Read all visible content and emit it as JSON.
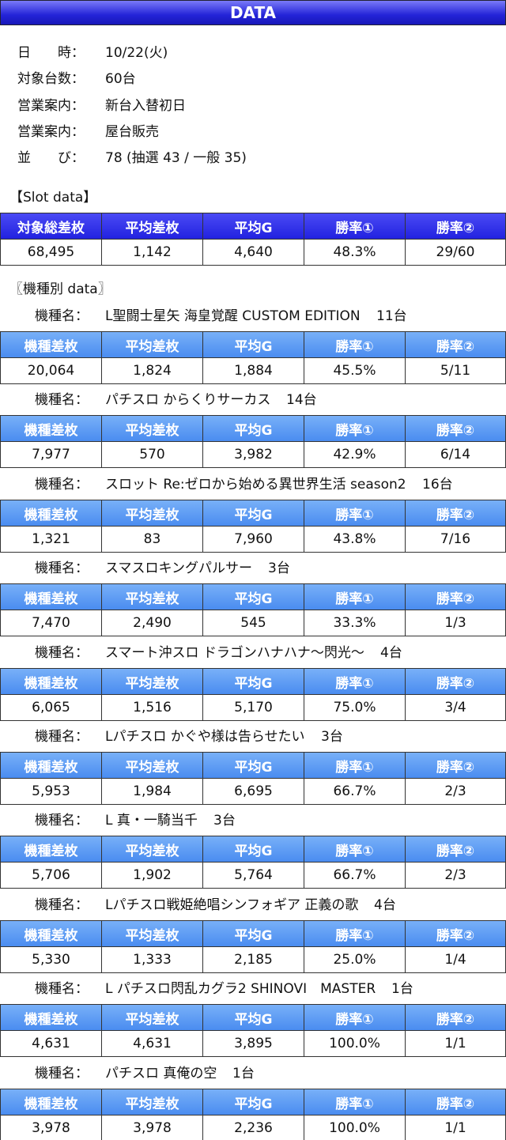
{
  "header": {
    "title": "DATA"
  },
  "info": [
    {
      "label": "日　　時：",
      "value": "10/22(火)"
    },
    {
      "label": "対象台数：",
      "value": "60台"
    },
    {
      "label": "営業案内：",
      "value": "新台入替初日"
    },
    {
      "label": "営業案内：",
      "value": "屋台販売"
    },
    {
      "label": "並　　び：",
      "value": "78 (抽選 43 / 一般 35)"
    }
  ],
  "slot": {
    "title": "【Slot data】",
    "headers": [
      "対象総差枚",
      "平均差枚",
      "平均G",
      "勝率①",
      "勝率②"
    ],
    "values": [
      "68,495",
      "1,142",
      "4,640",
      "48.3%",
      "29/60"
    ]
  },
  "machines_title": "〖機種別 data〗",
  "machine_headers": [
    "機種差枚",
    "平均差枚",
    "平均G",
    "勝率①",
    "勝率②"
  ],
  "machines": [
    {
      "label": "機種名：",
      "name": "L聖闘士星矢 海皇覚醒 CUSTOM EDITION",
      "count": "11台",
      "values": [
        "20,064",
        "1,824",
        "1,884",
        "45.5%",
        "5/11"
      ]
    },
    {
      "label": "機種名：",
      "name": "パチスロ からくりサーカス",
      "count": "14台",
      "values": [
        "7,977",
        "570",
        "3,982",
        "42.9%",
        "6/14"
      ]
    },
    {
      "label": "機種名：",
      "name": "スロット Re:ゼロから始める異世界生活 season2",
      "count": "16台",
      "values": [
        "1,321",
        "83",
        "7,960",
        "43.8%",
        "7/16"
      ]
    },
    {
      "label": "機種名：",
      "name": "スマスロキングパルサー",
      "count": "3台",
      "values": [
        "7,470",
        "2,490",
        "545",
        "33.3%",
        "1/3"
      ]
    },
    {
      "label": "機種名：",
      "name": "スマート沖スロ ドラゴンハナハナ～閃光～",
      "count": "4台",
      "values": [
        "6,065",
        "1,516",
        "5,170",
        "75.0%",
        "3/4"
      ]
    },
    {
      "label": "機種名：",
      "name": "Lパチスロ かぐや様は告らせたい",
      "count": "3台",
      "values": [
        "5,953",
        "1,984",
        "6,695",
        "66.7%",
        "2/3"
      ]
    },
    {
      "label": "機種名：",
      "name": "L 真・一騎当千",
      "count": "3台",
      "values": [
        "5,706",
        "1,902",
        "5,764",
        "66.7%",
        "2/3"
      ]
    },
    {
      "label": "機種名：",
      "name": "Lパチスロ戦姫絶唱シンフォギア 正義の歌",
      "count": "4台",
      "values": [
        "5,330",
        "1,333",
        "2,185",
        "25.0%",
        "1/4"
      ]
    },
    {
      "label": "機種名：",
      "name": "L パチスロ閃乱カグラ2 SHINOVI　MASTER",
      "count": "1台",
      "values": [
        "4,631",
        "4,631",
        "3,895",
        "100.0%",
        "1/1"
      ]
    },
    {
      "label": "機種名：",
      "name": "パチスロ 真俺の空",
      "count": "1台",
      "values": [
        "3,978",
        "3,978",
        "2,236",
        "100.0%",
        "1/1"
      ]
    }
  ]
}
